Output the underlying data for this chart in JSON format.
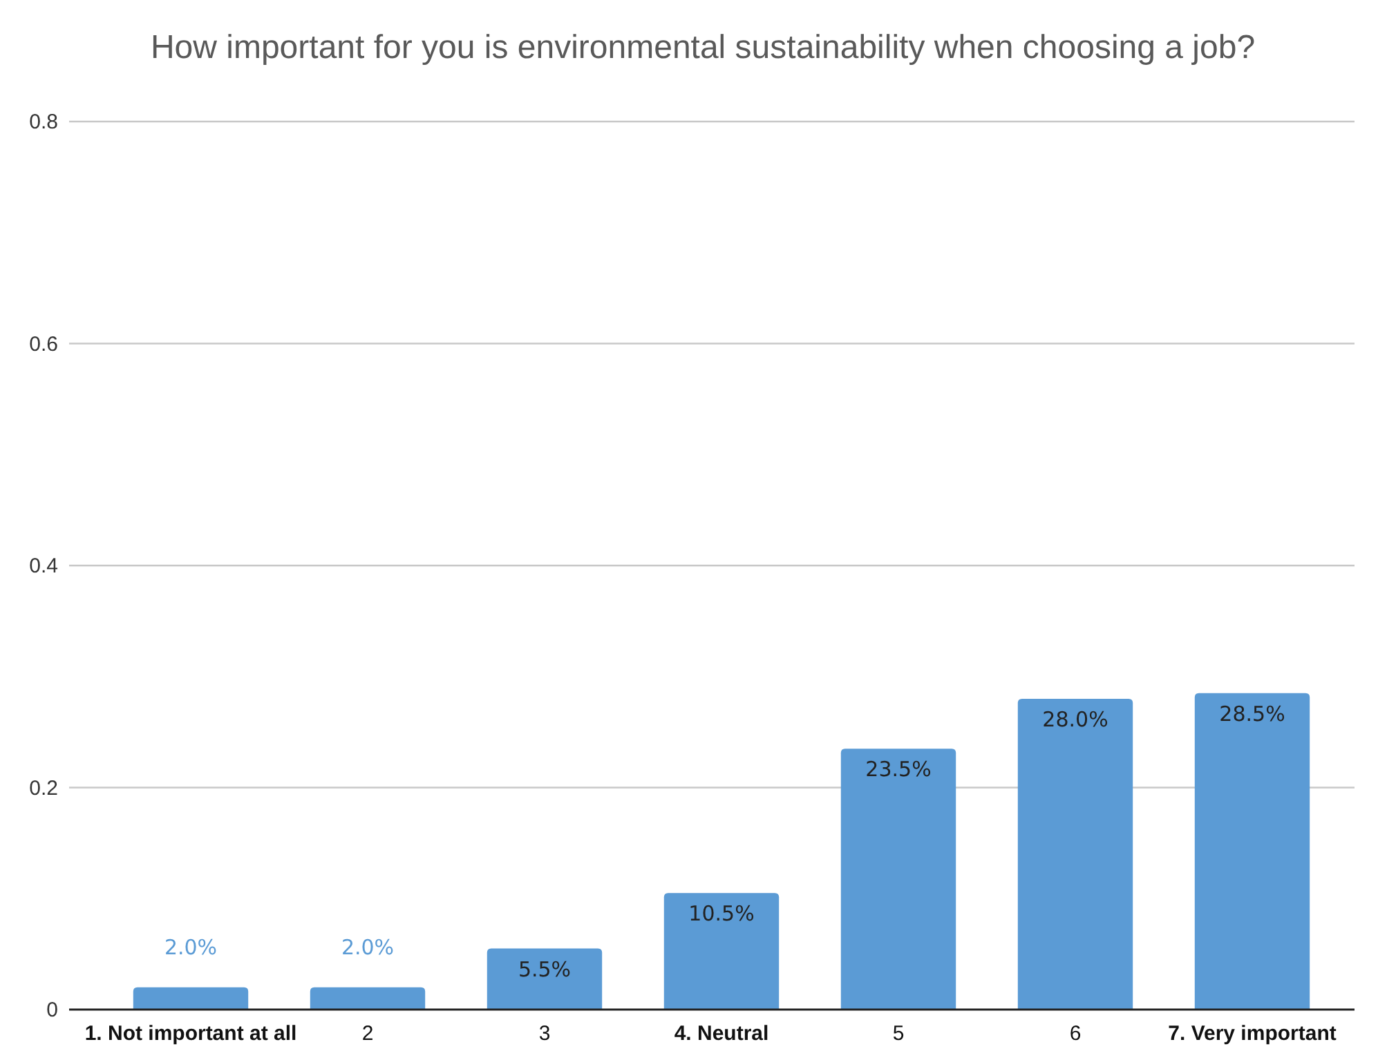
{
  "chart_data": {
    "type": "bar",
    "title": "How important for you is environmental sustainability when choosing a job?",
    "categories": [
      "1. Not important at all",
      "2",
      "3",
      "4. Neutral",
      "5",
      "6",
      "7. Very important"
    ],
    "values": [
      0.02,
      0.02,
      0.055,
      0.105,
      0.235,
      0.28,
      0.285
    ],
    "value_labels": [
      "2.0%",
      "2.0%",
      "5.5%",
      "10.5%",
      "23.5%",
      "28.0%",
      "28.5%"
    ],
    "color": "#5b9bd5",
    "ylim": [
      0,
      0.8
    ],
    "yticks": [
      0,
      0.2,
      0.4,
      0.6,
      0.8
    ],
    "grid": "y"
  }
}
